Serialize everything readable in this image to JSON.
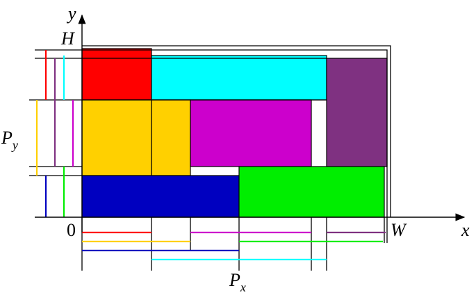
{
  "labels": {
    "y_axis": "y",
    "height": "H",
    "py": {
      "base": "P",
      "sub": "y"
    },
    "origin": "0",
    "width": "W",
    "x_axis": "x",
    "px": {
      "base": "P",
      "sub": "x"
    }
  }
}
